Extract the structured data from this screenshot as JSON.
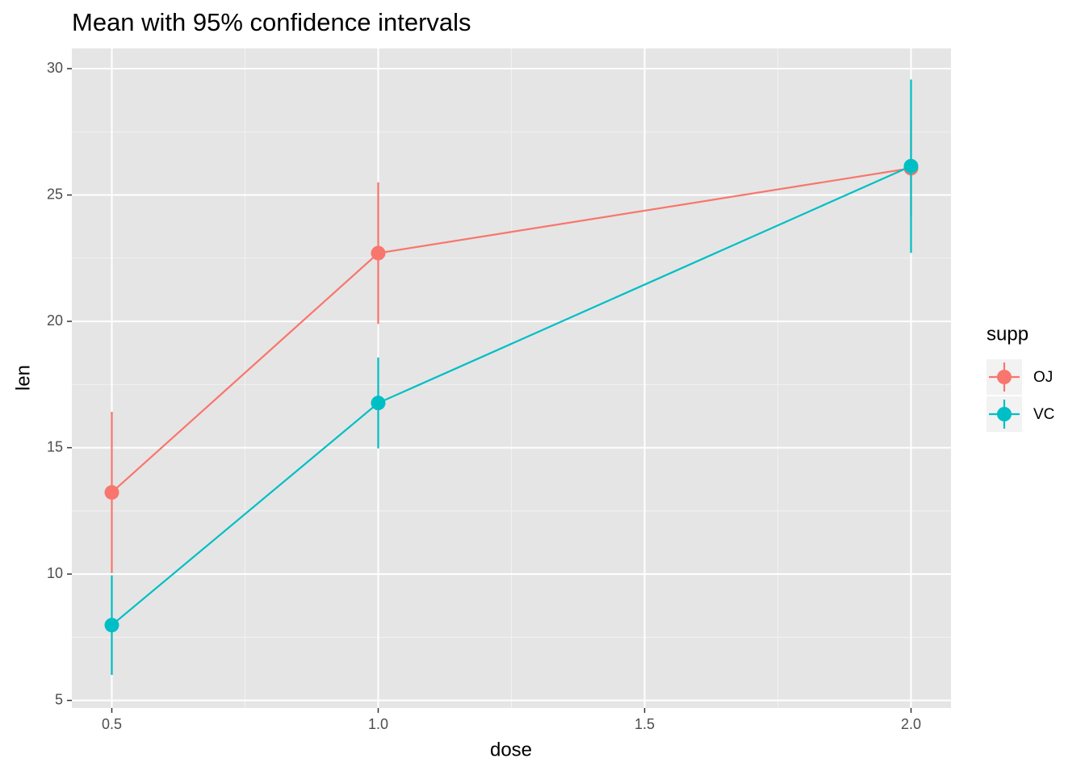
{
  "chart_data": {
    "type": "line",
    "title": "Mean with 95% confidence intervals",
    "x_label": "dose",
    "y_label": "len",
    "x": [
      0.5,
      1.0,
      2.0
    ],
    "series": [
      {
        "name": "OJ",
        "color": "#f8766d",
        "values": [
          13.23,
          22.7,
          26.06
        ],
        "errors": [
          3.19,
          2.8,
          1.9
        ]
      },
      {
        "name": "VC",
        "color": "#00bfc4",
        "values": [
          7.98,
          16.77,
          26.14
        ],
        "errors": [
          1.97,
          1.8,
          3.43
        ]
      }
    ],
    "xlim": [
      0.425,
      2.075
    ],
    "xticks": [
      {
        "value": 0.5,
        "label": "0.5"
      },
      {
        "value": 1,
        "label": "1.0"
      },
      {
        "value": 1.5,
        "label": "1.5"
      },
      {
        "value": 2,
        "label": "2.0"
      }
    ],
    "ylim": [
      4.7,
      30.8
    ],
    "yticks": [
      5,
      10,
      15,
      20,
      25,
      30
    ],
    "grid": true,
    "legend_title": "supp",
    "legend_position": "right"
  }
}
